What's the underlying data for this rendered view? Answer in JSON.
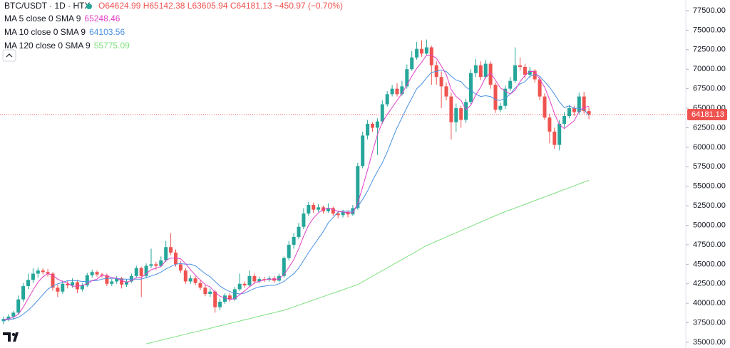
{
  "chart_data": {
    "type": "candlestick",
    "title": "BTC/USDT · 1D · HTX",
    "ohlc_text": "O64624.99 H65142.38 L63605.94 C64181.13 −450.97 (−0.70%)",
    "up_color": "#26a69a",
    "down_color": "#ef5350",
    "ylim": [
      34270,
      78868
    ],
    "yticks": [
      {
        "value": 35000,
        "label": "35000.00"
      },
      {
        "value": 37500,
        "label": "37500.00"
      },
      {
        "value": 40000,
        "label": "40000.00"
      },
      {
        "value": 42500,
        "label": "42500.00"
      },
      {
        "value": 45000,
        "label": "45000.00"
      },
      {
        "value": 47500,
        "label": "47500.00"
      },
      {
        "value": 50000,
        "label": "50000.00"
      },
      {
        "value": 52500,
        "label": "52500.00"
      },
      {
        "value": 55000,
        "label": "55000.00"
      },
      {
        "value": 57500,
        "label": "57500.00"
      },
      {
        "value": 60000,
        "label": "60000.00"
      },
      {
        "value": 62500,
        "label": "62500.00"
      },
      {
        "value": 65000,
        "label": "65000.00"
      },
      {
        "value": 67500,
        "label": "67500.00"
      },
      {
        "value": 70000,
        "label": "70000.00"
      },
      {
        "value": 72500,
        "label": "72500.00"
      },
      {
        "value": 75000,
        "label": "75000.00"
      },
      {
        "value": 77500,
        "label": "77500.00"
      }
    ],
    "grid": false,
    "last_price": 64181.13,
    "last_price_label": "64181.13",
    "candles": [
      [
        37700,
        38300,
        37300,
        38000
      ],
      [
        38000,
        38600,
        37700,
        38300
      ],
      [
        38300,
        39000,
        37900,
        38800
      ],
      [
        38800,
        41000,
        38500,
        40500
      ],
      [
        40500,
        42600,
        40200,
        42200
      ],
      [
        42200,
        43800,
        41800,
        43000
      ],
      [
        43000,
        44500,
        42600,
        43800
      ],
      [
        43800,
        44600,
        43300,
        44200
      ],
      [
        44200,
        44500,
        43700,
        44000
      ],
      [
        44000,
        44400,
        43400,
        43800
      ],
      [
        43800,
        44000,
        41600,
        42000
      ],
      [
        42000,
        42400,
        40800,
        41500
      ],
      [
        41500,
        42900,
        41200,
        42500
      ],
      [
        42500,
        42900,
        41900,
        42300
      ],
      [
        42300,
        43200,
        42000,
        42700
      ],
      [
        42700,
        43000,
        41300,
        41800
      ],
      [
        41800,
        42600,
        41500,
        42300
      ],
      [
        42300,
        43900,
        42100,
        43600
      ],
      [
        43600,
        44300,
        43300,
        44000
      ],
      [
        44000,
        44200,
        43400,
        43700
      ],
      [
        43700,
        43900,
        43300,
        43600
      ],
      [
        43600,
        43800,
        42200,
        42500
      ],
      [
        42500,
        43100,
        42200,
        42800
      ],
      [
        42800,
        43500,
        42500,
        43200
      ],
      [
        43200,
        43400,
        41900,
        42400
      ],
      [
        42400,
        43100,
        42100,
        42800
      ],
      [
        42800,
        43800,
        42600,
        43500
      ],
      [
        43500,
        44800,
        43300,
        44500
      ],
      [
        44500,
        44700,
        40800,
        43500
      ],
      [
        43500,
        45100,
        43200,
        44800
      ],
      [
        44800,
        47000,
        44500,
        45000
      ],
      [
        45000,
        45300,
        44300,
        44800
      ],
      [
        44800,
        46000,
        44600,
        45500
      ],
      [
        45500,
        48000,
        45300,
        47200
      ],
      [
        47200,
        49000,
        46200,
        46500
      ],
      [
        46500,
        46900,
        44700,
        45000
      ],
      [
        45000,
        45400,
        43900,
        44200
      ],
      [
        44200,
        44500,
        42500,
        42800
      ],
      [
        42800,
        43600,
        42500,
        43200
      ],
      [
        43200,
        43500,
        42300,
        42600
      ],
      [
        42600,
        43000,
        41700,
        42000
      ],
      [
        42000,
        42300,
        40900,
        41200
      ],
      [
        41200,
        41900,
        40800,
        41500
      ],
      [
        41500,
        41700,
        38800,
        39500
      ],
      [
        39500,
        40600,
        39100,
        40200
      ],
      [
        40200,
        41300,
        39900,
        41000
      ],
      [
        41000,
        41300,
        40200,
        40500
      ],
      [
        40500,
        42100,
        40300,
        41800
      ],
      [
        41800,
        43800,
        41600,
        42500
      ],
      [
        42500,
        42800,
        42000,
        42300
      ],
      [
        42300,
        44200,
        42100,
        43500
      ],
      [
        43500,
        43800,
        42500,
        42800
      ],
      [
        42800,
        43400,
        42600,
        43100
      ],
      [
        43100,
        43400,
        42700,
        43000
      ],
      [
        43000,
        43500,
        42800,
        43200
      ],
      [
        43200,
        43500,
        42600,
        42900
      ],
      [
        42900,
        43800,
        42700,
        43500
      ],
      [
        43500,
        46000,
        43300,
        45800
      ],
      [
        45800,
        48000,
        45500,
        47500
      ],
      [
        47500,
        49000,
        47000,
        48500
      ],
      [
        48500,
        50300,
        48200,
        49800
      ],
      [
        49800,
        52200,
        49500,
        51500
      ],
      [
        51500,
        53000,
        51200,
        52600
      ],
      [
        52600,
        52900,
        51600,
        52000
      ],
      [
        52000,
        52700,
        51700,
        52300
      ],
      [
        52300,
        52500,
        51500,
        51800
      ],
      [
        51800,
        52800,
        51600,
        52200
      ],
      [
        52200,
        52400,
        51200,
        51500
      ],
      [
        51500,
        51800,
        50900,
        51300
      ],
      [
        51300,
        52000,
        51000,
        51700
      ],
      [
        51700,
        51900,
        51000,
        51400
      ],
      [
        51400,
        52600,
        51200,
        52200
      ],
      [
        52200,
        58000,
        52000,
        57600
      ],
      [
        57600,
        62000,
        57300,
        61500
      ],
      [
        61500,
        63500,
        61000,
        63000
      ],
      [
        63000,
        63200,
        62000,
        62500
      ],
      [
        62500,
        63700,
        59000,
        63300
      ],
      [
        63300,
        66000,
        63000,
        65500
      ],
      [
        65500,
        67200,
        65200,
        66800
      ],
      [
        66800,
        68000,
        66500,
        67500
      ],
      [
        67500,
        68200,
        66500,
        66800
      ],
      [
        66800,
        68500,
        66600,
        67800
      ],
      [
        67800,
        70600,
        67500,
        70000
      ],
      [
        70000,
        72300,
        69800,
        71500
      ],
      [
        71500,
        73500,
        71200,
        72600
      ],
      [
        72600,
        73700,
        71600,
        72000
      ],
      [
        72000,
        73800,
        71800,
        72800
      ],
      [
        72800,
        73000,
        68000,
        70500
      ],
      [
        70500,
        71000,
        68000,
        69000
      ],
      [
        69000,
        69700,
        65000,
        67800
      ],
      [
        67800,
        68300,
        66000,
        66500
      ],
      [
        66500,
        67000,
        61000,
        63200
      ],
      [
        63200,
        65600,
        62000,
        65000
      ],
      [
        65000,
        65300,
        62500,
        63500
      ],
      [
        63500,
        66200,
        63100,
        65800
      ],
      [
        65800,
        70000,
        65500,
        69500
      ],
      [
        69500,
        71300,
        69000,
        70500
      ],
      [
        70500,
        71000,
        68600,
        69000
      ],
      [
        69000,
        71200,
        68800,
        70700
      ],
      [
        70700,
        71000,
        67500,
        68000
      ],
      [
        68000,
        68300,
        64400,
        64800
      ],
      [
        64800,
        65700,
        64500,
        65300
      ],
      [
        65300,
        67900,
        64900,
        67500
      ],
      [
        67500,
        69000,
        67200,
        68500
      ],
      [
        68500,
        72800,
        68200,
        70500
      ],
      [
        70500,
        71500,
        69800,
        70300
      ],
      [
        70300,
        70700,
        68800,
        69300
      ],
      [
        69300,
        70300,
        68900,
        69800
      ],
      [
        69800,
        70000,
        68300,
        68700
      ],
      [
        68700,
        69000,
        66000,
        66500
      ],
      [
        66500,
        66900,
        63500,
        63800
      ],
      [
        63800,
        64300,
        60500,
        62000
      ],
      [
        62000,
        62500,
        59800,
        60300
      ],
      [
        60300,
        63500,
        59600,
        63000
      ],
      [
        63000,
        64500,
        62500,
        64000
      ],
      [
        64000,
        65400,
        63700,
        65000
      ],
      [
        65000,
        65300,
        64000,
        64500
      ],
      [
        64500,
        67000,
        64200,
        66500
      ],
      [
        66500,
        67100,
        64300,
        64624.99
      ],
      [
        64624.99,
        65142.38,
        63605.94,
        64181.13
      ]
    ],
    "series": [
      {
        "name": "MA 5 close 0 SMA 9",
        "legend_value": "65248.46",
        "color": "#e040c8",
        "values": [
          37900,
          38000,
          38200,
          38600,
          39500,
          40600,
          41700,
          42700,
          43400,
          43800,
          43600,
          43100,
          42800,
          42600,
          42200,
          42200,
          42300,
          42500,
          42900,
          43100,
          43600,
          43500,
          43300,
          43200,
          42900,
          42700,
          42900,
          43300,
          43300,
          43800,
          44300,
          44500,
          44700,
          45500,
          45800,
          45800,
          45700,
          45100,
          44300,
          43600,
          43000,
          42400,
          42100,
          41400,
          40900,
          40700,
          40500,
          40600,
          41100,
          41600,
          42100,
          42600,
          42800,
          43000,
          43100,
          43100,
          43100,
          43700,
          44600,
          45600,
          47000,
          48600,
          50000,
          50900,
          51600,
          52000,
          52200,
          52000,
          51800,
          51700,
          51600,
          51600,
          52800,
          54900,
          57100,
          59400,
          61600,
          63200,
          64200,
          65100,
          66000,
          66900,
          68000,
          69100,
          70100,
          70900,
          71800,
          71800,
          71400,
          70400,
          69300,
          67400,
          66500,
          66000,
          64800,
          65400,
          66700,
          67700,
          69000,
          69500,
          68600,
          67600,
          67200,
          66800,
          67300,
          68400,
          69200,
          69700,
          69700,
          68700,
          67700,
          66100,
          64300,
          62900,
          62400,
          62900,
          63400,
          64600,
          65100,
          65248.46
        ]
      },
      {
        "name": "MA 10 close 0 SMA 9",
        "legend_value": "64103.56",
        "color": "#4a90e2",
        "values": [
          37800,
          37900,
          38000,
          38200,
          38600,
          39100,
          39700,
          40400,
          41100,
          41800,
          42200,
          42500,
          42700,
          42900,
          42900,
          42900,
          42800,
          42800,
          42900,
          42900,
          43100,
          43200,
          43200,
          43200,
          43100,
          43100,
          43100,
          43100,
          43100,
          43300,
          43500,
          43700,
          44000,
          44400,
          44700,
          45000,
          45100,
          45000,
          45000,
          44800,
          44300,
          43800,
          43400,
          42800,
          42200,
          41800,
          41500,
          41300,
          41200,
          41300,
          41600,
          41900,
          42100,
          42200,
          42300,
          42300,
          42500,
          42800,
          43300,
          43800,
          44500,
          45500,
          46500,
          47400,
          48300,
          49200,
          50300,
          51000,
          51700,
          51800,
          51800,
          51800,
          52400,
          53300,
          54400,
          55700,
          56900,
          58000,
          59400,
          61000,
          62500,
          63800,
          65100,
          66300,
          67500,
          68100,
          68900,
          69600,
          69700,
          69900,
          69700,
          69100,
          68600,
          68400,
          67700,
          67300,
          66800,
          66500,
          66600,
          66500,
          66100,
          66000,
          66300,
          66800,
          67600,
          68100,
          68400,
          69100,
          69300,
          69100,
          68400,
          67700,
          66800,
          65800,
          65100,
          65300,
          65000,
          65000,
          64800,
          64103.56
        ]
      },
      {
        "name": "MA 120 close 0 SMA 9",
        "legend_value": "55775.09",
        "color": "#7ee07e",
        "values": [
          null,
          null,
          null,
          null,
          null,
          null,
          null,
          null,
          null,
          null,
          null,
          null,
          null,
          null,
          null,
          null,
          null,
          null,
          null,
          null,
          null,
          null,
          null,
          null,
          null,
          null,
          null,
          null,
          null,
          34800,
          34950,
          35110,
          35260,
          35420,
          35570,
          35720,
          35880,
          36030,
          36190,
          36340,
          36490,
          36650,
          36800,
          36960,
          37110,
          37260,
          37420,
          37570,
          37730,
          37880,
          38030,
          38190,
          38340,
          38500,
          38650,
          38800,
          38960,
          39100,
          39320,
          39540,
          39760,
          39980,
          40200,
          40420,
          40640,
          40860,
          41080,
          41300,
          41520,
          41740,
          41960,
          42180,
          42400,
          42760,
          43110,
          43470,
          43830,
          44180,
          44540,
          44900,
          45250,
          45610,
          45970,
          46320,
          46680,
          47040,
          47400,
          47670,
          47950,
          48220,
          48490,
          48770,
          49040,
          49310,
          49590,
          49860,
          50130,
          50410,
          50680,
          50950,
          51230,
          51500,
          51740,
          51970,
          52210,
          52450,
          52680,
          52920,
          53160,
          53390,
          53630,
          53870,
          54100,
          54340,
          54580,
          54810,
          55050,
          55290,
          55530,
          55775.09
        ]
      }
    ]
  }
}
